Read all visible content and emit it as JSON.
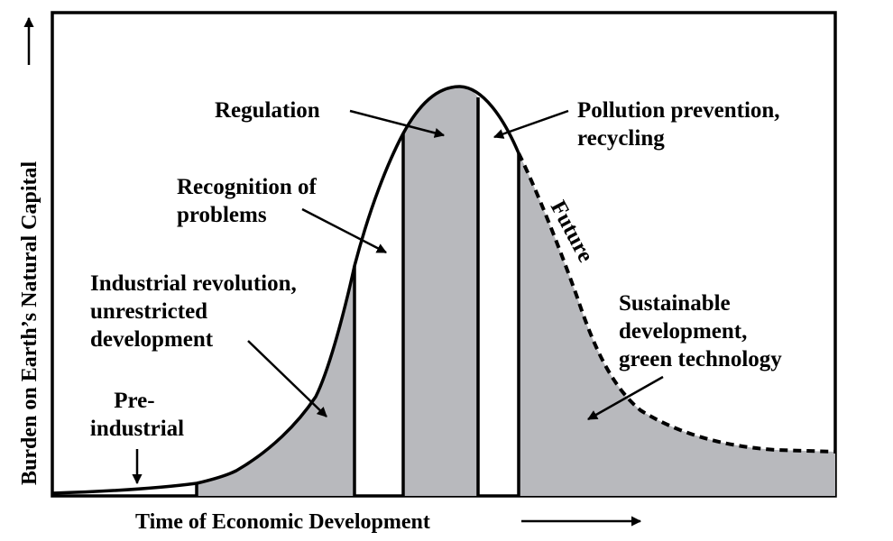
{
  "axes": {
    "x_label": "Time of Economic Development",
    "y_label": "Burden on Earth’s Natural Capital"
  },
  "labels": {
    "pre_industrial": [
      "Pre-",
      "industrial"
    ],
    "industrial_revolution": [
      "Industrial revolution,",
      "unrestricted",
      "development"
    ],
    "recognition": [
      "Recognition of",
      "problems"
    ],
    "regulation": [
      "Regulation"
    ],
    "pollution_prevention": [
      "Pollution prevention,",
      "recycling"
    ],
    "sustainable": [
      "Sustainable",
      "development,",
      "green technology"
    ],
    "future": "Future"
  },
  "colors": {
    "stage_fill": "#b8b9bd",
    "stroke": "#000000",
    "background": "#ffffff"
  }
}
